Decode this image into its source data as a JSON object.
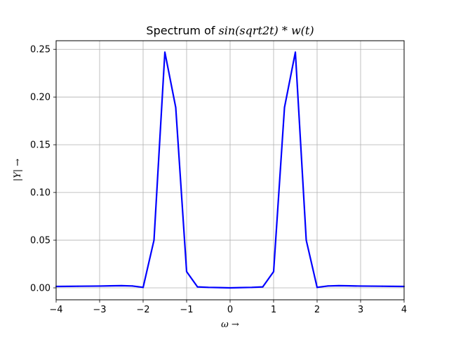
{
  "chart_data": {
    "type": "line",
    "title": {
      "prefix": "Spectrum of ",
      "math": "sin(sqrt2t) * w(t)"
    },
    "xlabel": "ω →",
    "ylabel": "|Y| →",
    "xlim": [
      -4,
      4
    ],
    "ylim": [
      -0.0125,
      0.259
    ],
    "x_ticks": [
      -4,
      -3,
      -2,
      -1,
      0,
      1,
      2,
      3,
      4
    ],
    "x_tick_labels": [
      "−4",
      "−3",
      "−2",
      "−1",
      "0",
      "1",
      "2",
      "3",
      "4"
    ],
    "y_ticks": [
      0.0,
      0.05,
      0.1,
      0.15,
      0.2,
      0.25
    ],
    "y_tick_labels": [
      "0.00",
      "0.05",
      "0.10",
      "0.15",
      "0.20",
      "0.25"
    ],
    "grid": true,
    "series": [
      {
        "color": "#0000ff",
        "x": [
          -4.0,
          -3.75,
          -3.5,
          -3.25,
          -3.0,
          -2.75,
          -2.5,
          -2.25,
          -2.0,
          -1.75,
          -1.5,
          -1.25,
          -1.0,
          -0.75,
          -0.5,
          -0.25,
          0.0,
          0.25,
          0.5,
          0.75,
          1.0,
          1.25,
          1.5,
          1.75,
          2.0,
          2.25,
          2.5,
          2.75,
          3.0,
          3.25,
          3.5,
          3.75,
          4.0
        ],
        "y": [
          0.0015,
          0.0016,
          0.0017,
          0.0018,
          0.0019,
          0.0021,
          0.0023,
          0.002,
          0.0005,
          0.05,
          0.247,
          0.189,
          0.017,
          0.001,
          0.0005,
          0.0003,
          0.0,
          0.0003,
          0.0005,
          0.001,
          0.017,
          0.189,
          0.247,
          0.05,
          0.0005,
          0.002,
          0.0023,
          0.0021,
          0.0019,
          0.0018,
          0.0017,
          0.0016,
          0.0015
        ]
      }
    ]
  }
}
